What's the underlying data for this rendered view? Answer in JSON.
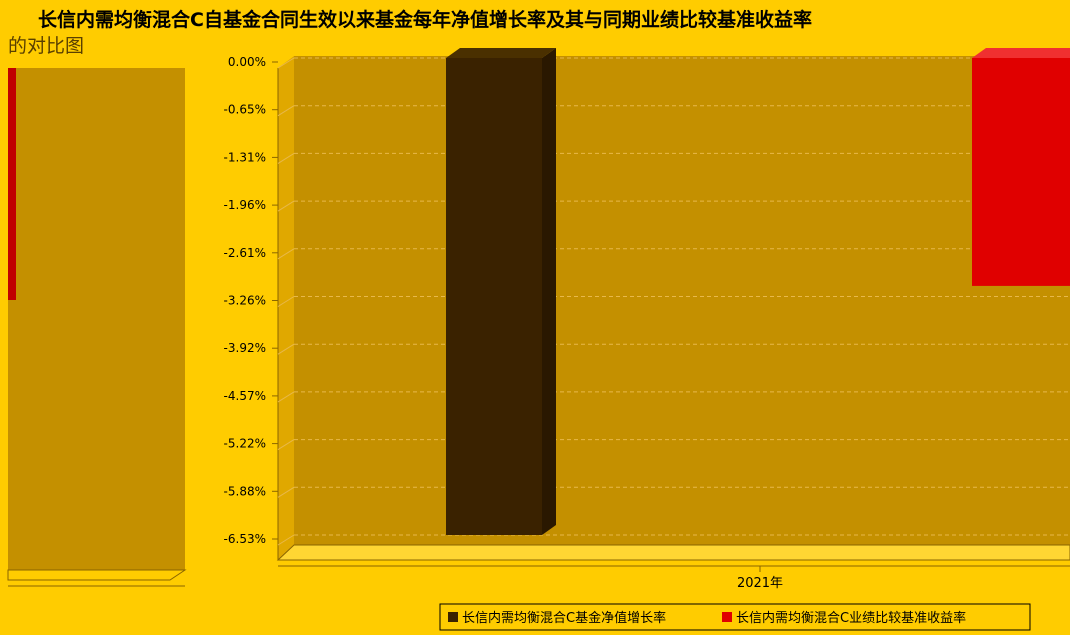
{
  "title_line1": "长信内需均衡混合C自基金合同生效以来基金每年净值增长率及其与同期业绩比较基准收益率",
  "title_line2": "的对比图",
  "colors": {
    "background": "#FFCC00",
    "plot": "#C49000",
    "bar_fund": "#3A2200",
    "bar_bench": "#E00000"
  },
  "chart_data": {
    "type": "bar",
    "categories": [
      "2021年"
    ],
    "series": [
      {
        "name": "长信内需均衡混合C基金净值增长率",
        "values": [
          -6.53
        ],
        "color": "#3A2200"
      },
      {
        "name": "长信内需均衡混合C业绩比较基准收益率",
        "values": [
          -3.12
        ],
        "color": "#E00000"
      }
    ],
    "yticks": [
      "0.00%",
      "-0.65%",
      "-1.31%",
      "-1.96%",
      "-2.61%",
      "-3.26%",
      "-3.92%",
      "-4.57%",
      "-5.22%",
      "-5.88%",
      "-6.53%"
    ],
    "ylim": [
      -6.53,
      0
    ],
    "grid": true,
    "legend": "bottom-right"
  }
}
